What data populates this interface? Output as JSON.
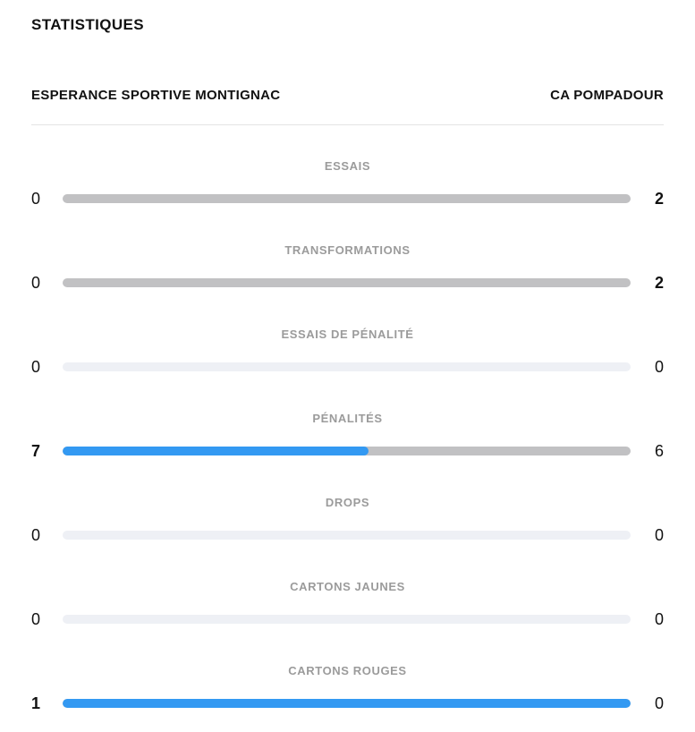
{
  "page": {
    "title": "STATISTIQUES"
  },
  "teams": {
    "home": "ESPERANCE SPORTIVE MONTIGNAC",
    "away": "CA POMPADOUR"
  },
  "colors": {
    "home_fill": "#3399f2",
    "away_fill": "#c1c1c3",
    "empty_track": "#eef0f5",
    "label_gray": "#9b9b9b",
    "divider": "#e3e3e3",
    "text": "#111111"
  },
  "stats": [
    {
      "label": "ESSAIS",
      "home": 0,
      "away": 2
    },
    {
      "label": "TRANSFORMATIONS",
      "home": 0,
      "away": 2
    },
    {
      "label": "ESSAIS DE PÉNALITÉ",
      "home": 0,
      "away": 0
    },
    {
      "label": "PÉNALITÉS",
      "home": 7,
      "away": 6
    },
    {
      "label": "DROPS",
      "home": 0,
      "away": 0
    },
    {
      "label": "CARTONS JAUNES",
      "home": 0,
      "away": 0
    },
    {
      "label": "CARTONS ROUGES",
      "home": 1,
      "away": 0
    }
  ],
  "chart_data": {
    "type": "bar",
    "subtype": "paired-horizontal-comparison",
    "title": "STATISTIQUES",
    "categories": [
      "ESSAIS",
      "TRANSFORMATIONS",
      "ESSAIS DE PÉNALITÉ",
      "PÉNALITÉS",
      "DROPS",
      "CARTONS JAUNES",
      "CARTONS ROUGES"
    ],
    "series": [
      {
        "name": "ESPERANCE SPORTIVE MONTIGNAC",
        "values": [
          0,
          0,
          0,
          7,
          0,
          0,
          1
        ],
        "color": "#3399f2"
      },
      {
        "name": "CA POMPADOUR",
        "values": [
          2,
          2,
          0,
          6,
          0,
          0,
          0
        ],
        "color": "#c1c1c3"
      }
    ],
    "bar_fill_rule": "home_share_of_total",
    "legend_position": "top",
    "grid": false
  }
}
